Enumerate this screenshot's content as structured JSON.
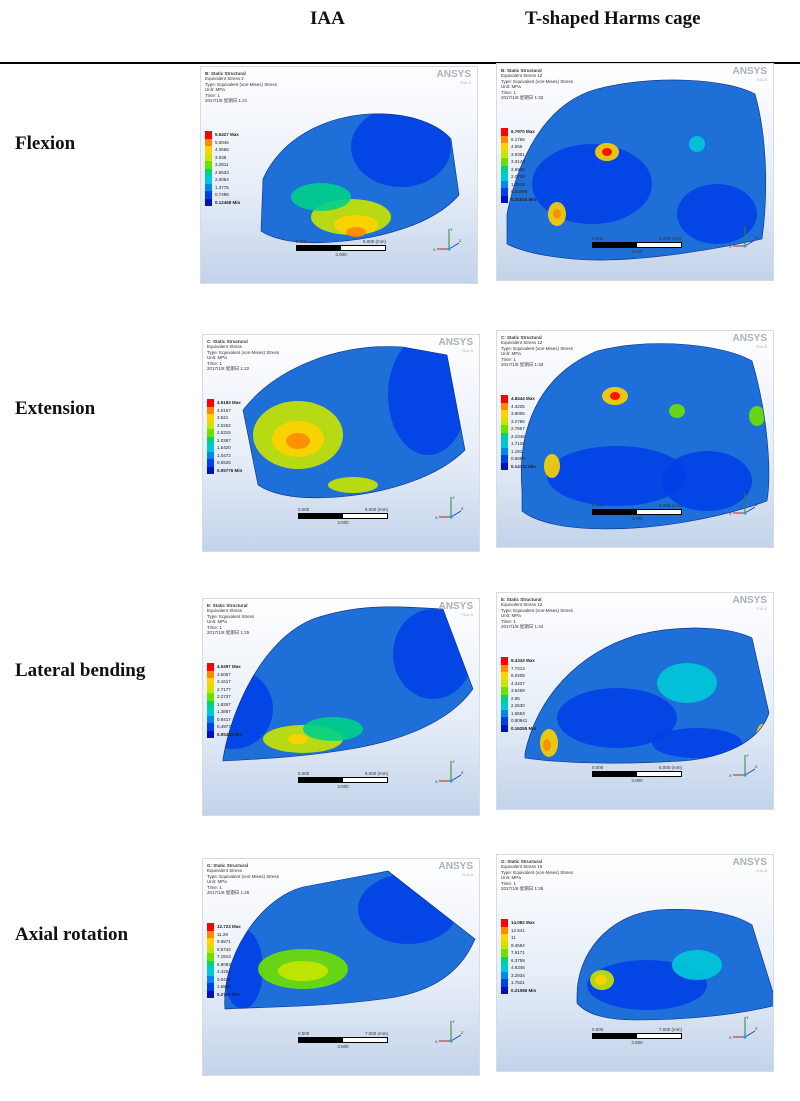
{
  "headers": {
    "iaa": "IAA",
    "cage": "T-shaped Harms cage"
  },
  "colormap": [
    "#ff0000",
    "#ff8a00",
    "#ffd200",
    "#c8e600",
    "#6ee000",
    "#00d08a",
    "#00c8d8",
    "#0088ee",
    "#0040e8",
    "#0010c0"
  ],
  "rows": [
    {
      "label": "Flexion",
      "iaa": {
        "title": "B: Static Structural",
        "lines": [
          "Equivalent Stress 2",
          "Type: Equivalent (von-Mises) Stress",
          "Unit: MPa",
          "Time: 1",
          "2017/1/8 星期日 1:21"
        ],
        "brand": "ANSYS",
        "version": "R14.5",
        "legend": [
          "5.6427 Max",
          "5.0046",
          "4.0665",
          "3.638",
          "3.2811",
          "2.6533",
          "2.0054",
          "1.3775",
          "0.7496",
          "0.12468 Min"
        ],
        "scale": {
          "left": "0.000",
          "right": "6.000 (mm)",
          "mid": "3.000"
        }
      },
      "cage": {
        "title": "B: Static Structural",
        "lines": [
          "Equivalent Stress 12",
          "Type: Equivalent (von-Mises) Stress",
          "Unit: MPa",
          "Time: 1",
          "2017/1/8 星期日 1:32"
        ],
        "brand": "ANSYS",
        "version": "R14.5",
        "legend": [
          "6.7970 Max",
          "6.1766",
          "4.556",
          "3.9351",
          "3.3143",
          "2.6935",
          "2.0726",
          "1.4518",
          "0.83098",
          "0.21016 Min"
        ],
        "scale": {
          "left": "0.000",
          "right": "6.000 (mm)",
          "mid": "3.000"
        }
      }
    },
    {
      "label": "Extension",
      "iaa": {
        "title": "C: Static Structural",
        "lines": [
          "Equivalent Stress",
          "Type: Equivalent (von-Mises) Stress",
          "Unit: MPa",
          "Time: 1",
          "2017/1/8 星期日 1:22"
        ],
        "brand": "ANSYS",
        "version": "R14.5",
        "legend": [
          "4.5183 Max",
          "4.0157",
          "3.521",
          "3.0262",
          "2.5315",
          "2.0367",
          "1.5420",
          "1.0472",
          "0.5525",
          "0.05776 Min"
        ],
        "scale": {
          "left": "0.000",
          "right": "6.000 (mm)",
          "mid": "3.000"
        }
      },
      "cage": {
        "title": "C: Static Structural",
        "lines": [
          "Equivalent Stress 12",
          "Type: Equivalent (von-Mises) Stress",
          "Unit: MPa",
          "Time: 1",
          "2017/1/8 星期日 1:33"
        ],
        "brand": "ANSYS",
        "version": "R14.5",
        "legend": [
          "4.8444 Max",
          "4.3225",
          "3.8006",
          "3.2786",
          "2.7567",
          "2.2348",
          "1.7128",
          "1.191",
          "0.6690",
          "0.14711 Min"
        ],
        "scale": {
          "left": "0.000",
          "right": "6.000 (mm)",
          "mid": "3.000"
        }
      }
    },
    {
      "label": "Lateral bending",
      "iaa": {
        "title": "E: Static Structural",
        "lines": [
          "Equivalent Stress",
          "Type: Equivalent Stress",
          "Unit: MPa",
          "Time: 1",
          "2017/1/8 星期日 1:25"
        ],
        "brand": "ANSYS",
        "version": "R14.5",
        "legend": [
          "4.0497 Max",
          "3.6057",
          "3.1617",
          "2.7177",
          "2.2737",
          "1.8297",
          "1.3857",
          "0.9417",
          "0.4977",
          "0.05369 Min"
        ],
        "scale": {
          "left": "0.000",
          "right": "6.000 (mm)",
          "mid": "3.000"
        }
      },
      "cage": {
        "title": "E: Static Structural",
        "lines": [
          "Equivalent Stress 12",
          "Type: Equivalent (von-Mises) Stress",
          "Unit: MPa",
          "Time: 1",
          "2017/1/8 星期日 1:34"
        ],
        "brand": "ANSYS",
        "version": "R14.5",
        "legend": [
          "8.4343 Max",
          "7.7214",
          "6.0408",
          "4.3427",
          "3.6469",
          "2.85",
          "2.2630",
          "1.5563",
          "0.80941",
          "0.16255 Min"
        ],
        "scale": {
          "left": "0.000",
          "right": "6.000 (mm)",
          "mid": "3.000"
        }
      }
    },
    {
      "label": "Axial rotation",
      "iaa": {
        "title": "G: Static Structural",
        "lines": [
          "Equivalent Stress",
          "Type: Equivalent (von-Mises) Stress",
          "Unit: MPa",
          "Time: 1",
          "2017/1/8 星期日 1:26"
        ],
        "brand": "ANSYS",
        "version": "R14.5",
        "legend": [
          "12.723 Max",
          "11.29",
          "9.9571",
          "8.5742",
          "7.1913",
          "5.8083",
          "4.4254",
          "3.0425",
          "1.6596",
          "0.2767 Min"
        ],
        "scale": {
          "left": "0.000",
          "right": "7.000 (mm)",
          "mid": "3.500"
        }
      },
      "cage": {
        "title": "G: Static Structural",
        "lines": [
          "Equivalent Stress 15",
          "Type: Equivalent (von-Mises) Stress",
          "Unit: MPa",
          "Time: 1",
          "2017/1/8 星期日 1:38"
        ],
        "brand": "ANSYS",
        "version": "R14.5",
        "legend": [
          "14.082 Max",
          "12.541",
          "11",
          "9.4594",
          "7.9171",
          "6.3759",
          "4.8346",
          "3.2934",
          "1.7521",
          "0.21086 Min"
        ],
        "scale": {
          "left": "0.000",
          "right": "7.000 (mm)",
          "mid": "3.500"
        }
      }
    }
  ]
}
